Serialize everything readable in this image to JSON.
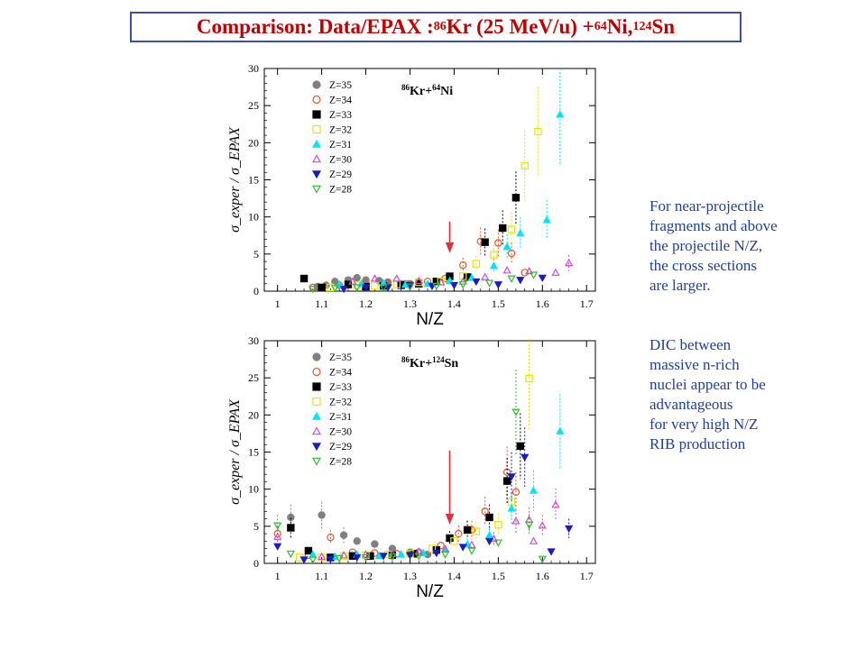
{
  "title": {
    "prefix": "Comparison: Data/EPAX :  ",
    "a1": "86",
    "e1": "Kr (25 MeV/u) + ",
    "a2": "64",
    "e2": "Ni, ",
    "a3": "124",
    "e3": "Sn"
  },
  "side_text": {
    "block1": [
      "For near-projectile",
      "fragments and above",
      "the projectile N/Z,",
      "the cross sections",
      "are larger."
    ],
    "block2": [
      "DIC between",
      "massive n-rich",
      "nuclei appear to be",
      "advantageous",
      "for very high N/Z",
      "RIB  production"
    ]
  },
  "legend_items": [
    {
      "label": "Z=35",
      "marker": "circle-filled",
      "color": "#808080"
    },
    {
      "label": "Z=34",
      "marker": "circle-open",
      "color": "#e2572c"
    },
    {
      "label": "Z=33",
      "marker": "square-filled",
      "color": "#000000"
    },
    {
      "label": "Z=32",
      "marker": "square-open",
      "color": "#e6e600"
    },
    {
      "label": "Z=31",
      "marker": "triangle-up-filled",
      "color": "#00e5ff"
    },
    {
      "label": "Z=30",
      "marker": "triangle-up-open",
      "color": "#d14bd1"
    },
    {
      "label": "Z=29",
      "marker": "triangle-down-filled",
      "color": "#1a1ac8"
    },
    {
      "label": "Z=28",
      "marker": "triangle-down-open",
      "color": "#2ebd2e"
    }
  ],
  "chart_data": [
    {
      "type": "scatter",
      "reaction": {
        "a1": "86",
        "e1": "Kr+",
        "a2": "64",
        "e2": "Ni"
      },
      "xlabel": "N/Z",
      "ylabel": "σ_exper / σ_EPAX",
      "xlim": [
        0.97,
        1.72
      ],
      "ylim": [
        0,
        30
      ],
      "xticks": [
        1,
        1.1,
        1.2,
        1.3,
        1.4,
        1.5,
        1.6,
        1.7
      ],
      "yticks": [
        0,
        5,
        10,
        15,
        20,
        25,
        30
      ],
      "arrow_x": 1.39,
      "arrow_y": [
        9.4,
        5.3
      ],
      "series": [
        {
          "z": "Z=35",
          "points": [
            [
              1.09,
              0.6
            ],
            [
              1.11,
              0.8
            ],
            [
              1.13,
              1.3
            ],
            [
              1.16,
              1.5
            ],
            [
              1.18,
              1.8
            ],
            [
              1.2,
              1.5
            ],
            [
              1.23,
              1.4
            ],
            [
              1.25,
              1.2
            ],
            [
              1.28,
              1.0
            ],
            [
              1.3,
              1.0
            ]
          ]
        },
        {
          "z": "Z=34",
          "points": [
            [
              1.08,
              0.5
            ],
            [
              1.14,
              0.8
            ],
            [
              1.2,
              1.0
            ],
            [
              1.25,
              1.2
            ],
            [
              1.29,
              1.0
            ],
            [
              1.34,
              1.3
            ],
            [
              1.38,
              1.7
            ],
            [
              1.42,
              3.5
            ],
            [
              1.46,
              6.7
            ],
            [
              1.5,
              6.5
            ],
            [
              1.53,
              5.1
            ],
            [
              1.56,
              2.5
            ]
          ]
        },
        {
          "z": "Z=33",
          "points": [
            [
              1.06,
              1.7
            ],
            [
              1.1,
              0.5
            ],
            [
              1.16,
              0.9
            ],
            [
              1.2,
              0.6
            ],
            [
              1.24,
              0.7
            ],
            [
              1.28,
              0.8
            ],
            [
              1.32,
              1.0
            ],
            [
              1.36,
              1.3
            ],
            [
              1.39,
              2.0
            ],
            [
              1.43,
              1.9
            ],
            [
              1.47,
              6.6
            ],
            [
              1.51,
              8.5
            ],
            [
              1.54,
              12.6
            ]
          ]
        },
        {
          "z": "Z=32",
          "points": [
            [
              1.12,
              0.5
            ],
            [
              1.18,
              0.8
            ],
            [
              1.22,
              0.7
            ],
            [
              1.27,
              0.9
            ],
            [
              1.32,
              1.2
            ],
            [
              1.37,
              1.3
            ],
            [
              1.42,
              2.0
            ],
            [
              1.45,
              3.7
            ],
            [
              1.49,
              4.9
            ],
            [
              1.53,
              8.3
            ],
            [
              1.56,
              16.9
            ],
            [
              1.59,
              21.5
            ]
          ]
        },
        {
          "z": "Z=31",
          "points": [
            [
              1.14,
              0.9
            ],
            [
              1.19,
              1.0
            ],
            [
              1.24,
              1.1
            ],
            [
              1.29,
              0.9
            ],
            [
              1.34,
              1.0
            ],
            [
              1.39,
              1.4
            ],
            [
              1.44,
              1.8
            ],
            [
              1.49,
              3.4
            ],
            [
              1.52,
              6.0
            ],
            [
              1.55,
              7.8
            ],
            [
              1.61,
              9.6
            ],
            [
              1.64,
              23.8
            ]
          ]
        },
        {
          "z": "Z=30",
          "points": [
            [
              1.17,
              1.3
            ],
            [
              1.22,
              1.7
            ],
            [
              1.27,
              1.7
            ],
            [
              1.32,
              1.4
            ],
            [
              1.37,
              1.2
            ],
            [
              1.42,
              1.3
            ],
            [
              1.47,
              1.9
            ],
            [
              1.52,
              2.8
            ],
            [
              1.57,
              2.7
            ],
            [
              1.63,
              2.5
            ],
            [
              1.66,
              3.8
            ]
          ]
        },
        {
          "z": "Z=29",
          "points": [
            [
              1.15,
              0.3
            ],
            [
              1.2,
              0.5
            ],
            [
              1.25,
              0.5
            ],
            [
              1.3,
              0.8
            ],
            [
              1.35,
              0.7
            ],
            [
              1.4,
              0.8
            ],
            [
              1.45,
              1.3
            ],
            [
              1.5,
              0.9
            ],
            [
              1.55,
              1.5
            ],
            [
              1.6,
              1.8
            ]
          ]
        },
        {
          "z": "Z=28",
          "points": [
            [
              1.08,
              0.3
            ],
            [
              1.13,
              0.4
            ],
            [
              1.18,
              0.5
            ],
            [
              1.24,
              0.5
            ],
            [
              1.3,
              0.6
            ],
            [
              1.36,
              0.7
            ],
            [
              1.42,
              0.9
            ],
            [
              1.48,
              1.1
            ],
            [
              1.53,
              1.7
            ],
            [
              1.58,
              2.2
            ]
          ]
        }
      ]
    },
    {
      "type": "scatter",
      "reaction": {
        "a1": "86",
        "e1": "Kr+",
        "a2": "124",
        "e2": "Sn"
      },
      "xlabel": "N/Z",
      "ylabel": "σ_exper / σ_EPAX",
      "xlim": [
        0.97,
        1.72
      ],
      "ylim": [
        0,
        30
      ],
      "xticks": [
        1,
        1.1,
        1.2,
        1.3,
        1.4,
        1.5,
        1.6,
        1.7
      ],
      "yticks": [
        0,
        5,
        10,
        15,
        20,
        25,
        30
      ],
      "arrow_x": 1.39,
      "arrow_y": [
        15.2,
        5.4
      ],
      "series": [
        {
          "z": "Z=35",
          "points": [
            [
              1.03,
              6.2
            ],
            [
              1.1,
              6.5
            ],
            [
              1.15,
              3.8
            ],
            [
              1.18,
              3.0
            ],
            [
              1.22,
              2.6
            ],
            [
              1.26,
              2.0
            ],
            [
              1.3,
              1.5
            ],
            [
              1.34,
              1.2
            ]
          ]
        },
        {
          "z": "Z=34",
          "points": [
            [
              1.0,
              4.0
            ],
            [
              1.07,
              1.1
            ],
            [
              1.12,
              3.5
            ],
            [
              1.17,
              1.5
            ],
            [
              1.22,
              1.4
            ],
            [
              1.27,
              1.3
            ],
            [
              1.32,
              1.5
            ],
            [
              1.37,
              2.4
            ],
            [
              1.41,
              4.0
            ],
            [
              1.44,
              4.5
            ],
            [
              1.47,
              7.0
            ],
            [
              1.52,
              12.3
            ],
            [
              1.54,
              9.6
            ]
          ]
        },
        {
          "z": "Z=33",
          "points": [
            [
              1.03,
              4.8
            ],
            [
              1.07,
              1.7
            ],
            [
              1.12,
              0.8
            ],
            [
              1.17,
              1.0
            ],
            [
              1.21,
              1.0
            ],
            [
              1.26,
              1.1
            ],
            [
              1.31,
              1.3
            ],
            [
              1.36,
              1.8
            ],
            [
              1.39,
              3.4
            ],
            [
              1.43,
              4.5
            ],
            [
              1.48,
              6.2
            ],
            [
              1.52,
              11.1
            ],
            [
              1.55,
              15.8
            ]
          ]
        },
        {
          "z": "Z=32",
          "points": [
            [
              1.05,
              0.8
            ],
            [
              1.1,
              0.8
            ],
            [
              1.15,
              1.0
            ],
            [
              1.2,
              1.1
            ],
            [
              1.25,
              1.2
            ],
            [
              1.3,
              1.3
            ],
            [
              1.35,
              2.0
            ],
            [
              1.4,
              3.0
            ],
            [
              1.45,
              4.3
            ],
            [
              1.5,
              5.2
            ],
            [
              1.53,
              8.3
            ],
            [
              1.57,
              24.9
            ]
          ]
        },
        {
          "z": "Z=31",
          "points": [
            [
              1.08,
              1.2
            ],
            [
              1.13,
              0.9
            ],
            [
              1.18,
              1.2
            ],
            [
              1.23,
              1.0
            ],
            [
              1.28,
              1.2
            ],
            [
              1.33,
              1.4
            ],
            [
              1.38,
              1.9
            ],
            [
              1.43,
              2.6
            ],
            [
              1.48,
              3.8
            ],
            [
              1.53,
              7.4
            ],
            [
              1.58,
              9.8
            ],
            [
              1.64,
              17.8
            ]
          ]
        },
        {
          "z": "Z=30",
          "points": [
            [
              1.0,
              3.6
            ],
            [
              1.1,
              0.9
            ],
            [
              1.15,
              1.1
            ],
            [
              1.2,
              1.2
            ],
            [
              1.26,
              1.3
            ],
            [
              1.32,
              1.6
            ],
            [
              1.38,
              1.9
            ],
            [
              1.44,
              2.5
            ],
            [
              1.49,
              3.3
            ],
            [
              1.54,
              5.7
            ],
            [
              1.57,
              5.9
            ],
            [
              1.6,
              5.1
            ],
            [
              1.63,
              7.9
            ],
            [
              1.58,
              3.0
            ]
          ]
        },
        {
          "z": "Z=29",
          "points": [
            [
              1.0,
              2.3
            ],
            [
              1.06,
              0.5
            ],
            [
              1.12,
              0.6
            ],
            [
              1.18,
              0.8
            ],
            [
              1.24,
              1.0
            ],
            [
              1.3,
              1.1
            ],
            [
              1.36,
              1.4
            ],
            [
              1.42,
              2.2
            ],
            [
              1.48,
              3.0
            ],
            [
              1.53,
              11.7
            ],
            [
              1.56,
              14.3
            ],
            [
              1.62,
              1.6
            ],
            [
              1.66,
              4.7
            ]
          ]
        },
        {
          "z": "Z=28",
          "points": [
            [
              1.0,
              5.1
            ],
            [
              1.03,
              1.3
            ],
            [
              1.08,
              0.5
            ],
            [
              1.14,
              0.7
            ],
            [
              1.2,
              0.8
            ],
            [
              1.26,
              0.9
            ],
            [
              1.32,
              1.0
            ],
            [
              1.38,
              1.2
            ],
            [
              1.44,
              1.7
            ],
            [
              1.5,
              2.8
            ],
            [
              1.54,
              20.4
            ],
            [
              1.57,
              5.2
            ],
            [
              1.6,
              0.6
            ]
          ]
        }
      ]
    }
  ]
}
